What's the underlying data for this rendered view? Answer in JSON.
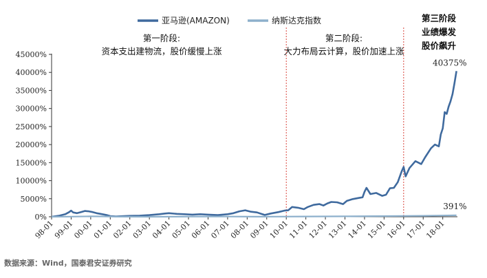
{
  "chart_data": {
    "type": "line",
    "title": "",
    "xlabel": "",
    "ylabel": "",
    "ylim": [
      0,
      45000
    ],
    "y_ticks": [
      "0%",
      "5000%",
      "10000%",
      "15000%",
      "20000%",
      "25000%",
      "30000%",
      "35000%",
      "40000%",
      "45000%"
    ],
    "x_ticks": [
      "98-01",
      "99-01",
      "00-01",
      "01-01",
      "02-01",
      "03-01",
      "04-01",
      "05-01",
      "06-01",
      "07-01",
      "08-01",
      "09-01",
      "10-01",
      "11-01",
      "12-01",
      "13-01",
      "14-01",
      "15-01",
      "16-01",
      "17-01",
      "18-01"
    ],
    "x_range": [
      1998.0,
      2018.75
    ],
    "grid": false,
    "legend_position": "top",
    "series": [
      {
        "name": "亚马逊(AMAZON)",
        "color": "#3f6a9e",
        "end_label": "40375%",
        "points": [
          [
            1998.0,
            0
          ],
          [
            1998.4,
            300
          ],
          [
            1998.7,
            700
          ],
          [
            1998.9,
            1300
          ],
          [
            1999.0,
            1700
          ],
          [
            1999.1,
            1200
          ],
          [
            1999.3,
            1000
          ],
          [
            1999.5,
            1300
          ],
          [
            1999.7,
            1600
          ],
          [
            1999.9,
            1500
          ],
          [
            2000.1,
            1300
          ],
          [
            2000.3,
            1000
          ],
          [
            2000.5,
            800
          ],
          [
            2000.8,
            500
          ],
          [
            2001.0,
            200
          ],
          [
            2001.3,
            100
          ],
          [
            2001.7,
            200
          ],
          [
            2002.0,
            250
          ],
          [
            2002.5,
            300
          ],
          [
            2003.0,
            450
          ],
          [
            2003.5,
            700
          ],
          [
            2003.8,
            900
          ],
          [
            2004.0,
            1000
          ],
          [
            2004.4,
            800
          ],
          [
            2004.8,
            700
          ],
          [
            2005.2,
            600
          ],
          [
            2005.6,
            700
          ],
          [
            2006.0,
            600
          ],
          [
            2006.5,
            450
          ],
          [
            2007.0,
            700
          ],
          [
            2007.3,
            1000
          ],
          [
            2007.6,
            1500
          ],
          [
            2007.9,
            1800
          ],
          [
            2008.2,
            1400
          ],
          [
            2008.5,
            1200
          ],
          [
            2008.9,
            500
          ],
          [
            2009.2,
            900
          ],
          [
            2009.6,
            1300
          ],
          [
            2009.9,
            1700
          ],
          [
            2010.1,
            1800
          ],
          [
            2010.3,
            2700
          ],
          [
            2010.6,
            2500
          ],
          [
            2010.9,
            2100
          ],
          [
            2011.1,
            2700
          ],
          [
            2011.4,
            3300
          ],
          [
            2011.7,
            3500
          ],
          [
            2011.9,
            3100
          ],
          [
            2012.1,
            3700
          ],
          [
            2012.3,
            4100
          ],
          [
            2012.6,
            4000
          ],
          [
            2012.9,
            3500
          ],
          [
            2013.1,
            4400
          ],
          [
            2013.4,
            4900
          ],
          [
            2013.7,
            5200
          ],
          [
            2013.9,
            5400
          ],
          [
            2014.0,
            6900
          ],
          [
            2014.1,
            8000
          ],
          [
            2014.3,
            6300
          ],
          [
            2014.6,
            6600
          ],
          [
            2014.9,
            5800
          ],
          [
            2015.1,
            6100
          ],
          [
            2015.3,
            7900
          ],
          [
            2015.5,
            8000
          ],
          [
            2015.7,
            9600
          ],
          [
            2015.9,
            12600
          ],
          [
            2016.0,
            13800
          ],
          [
            2016.1,
            11200
          ],
          [
            2016.3,
            13500
          ],
          [
            2016.6,
            15400
          ],
          [
            2016.9,
            14600
          ],
          [
            2017.1,
            16500
          ],
          [
            2017.4,
            19000
          ],
          [
            2017.6,
            20000
          ],
          [
            2017.8,
            19500
          ],
          [
            2017.9,
            22800
          ],
          [
            2018.0,
            24500
          ],
          [
            2018.1,
            29000
          ],
          [
            2018.2,
            28500
          ],
          [
            2018.3,
            30500
          ],
          [
            2018.4,
            32000
          ],
          [
            2018.5,
            34000
          ],
          [
            2018.6,
            37000
          ],
          [
            2018.7,
            40375
          ]
        ]
      },
      {
        "name": "纳斯达克指数",
        "color": "#8db0cc",
        "end_label": "391%",
        "points": [
          [
            1998.0,
            0
          ],
          [
            1999.0,
            40
          ],
          [
            2000.0,
            120
          ],
          [
            2000.5,
            100
          ],
          [
            2001.5,
            20
          ],
          [
            2003.0,
            0
          ],
          [
            2005.0,
            40
          ],
          [
            2007.0,
            60
          ],
          [
            2008.5,
            20
          ],
          [
            2009.5,
            30
          ],
          [
            2011.0,
            70
          ],
          [
            2013.0,
            110
          ],
          [
            2014.5,
            180
          ],
          [
            2016.0,
            220
          ],
          [
            2017.0,
            260
          ],
          [
            2018.0,
            340
          ],
          [
            2018.7,
            391
          ]
        ]
      }
    ],
    "phase_dividers": [
      2010.0,
      2016.0
    ],
    "annotations": [
      {
        "lines": [
          "第一阶段:",
          "资本支出建物流，股价缓慢上涨"
        ],
        "bold": false
      },
      {
        "lines": [
          "第二阶段:",
          "大力布局云计算，股价加速上涨"
        ],
        "bold": false
      },
      {
        "lines": [
          "第三阶段",
          "业绩爆发",
          "股价飙升"
        ],
        "bold": true
      }
    ]
  },
  "source_note": "数据来源：Wind，国泰君安证券研究"
}
